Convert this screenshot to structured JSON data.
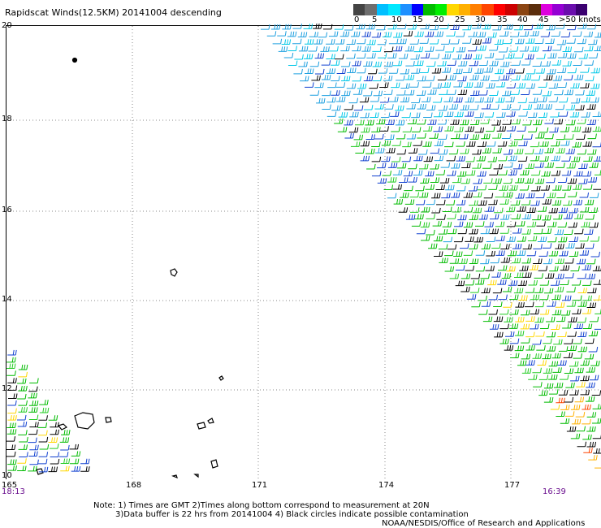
{
  "title": "Rapidscat Winds(12.5KM) 20141004 descending",
  "colorbar": {
    "colors": [
      "#444444",
      "#6e6e6e",
      "#00bfff",
      "#00e8ff",
      "#1e90ff",
      "#0000ff",
      "#00bb00",
      "#00ee00",
      "#ffd700",
      "#ffb000",
      "#ff7f00",
      "#ff4500",
      "#ff0000",
      "#cc0000",
      "#8b4513",
      "#5a2d0c",
      "#dd00dd",
      "#9400d3",
      "#6a0dad",
      "#3b0070"
    ],
    "labels": [
      "0",
      "5",
      "10",
      "15",
      "20",
      "25",
      "30",
      "35",
      "40",
      "45",
      ">50 knots"
    ]
  },
  "axes": {
    "y_ticks": [
      "20",
      "18",
      "16",
      "14",
      "12",
      "10"
    ],
    "x_ticks": [
      "165",
      "168",
      "171",
      "174",
      "177"
    ]
  },
  "times": {
    "start": "18:13",
    "end": "16:39"
  },
  "notes": [
    "Note: 1) Times are GMT 2)Times along bottom correspond to measurement at 20N",
    "3)Data buffer is 22 hrs from 20141004 4) Black circles indicate possible contamination",
    "NOAA/NESDIS/Office of Research and Applications"
  ]
}
